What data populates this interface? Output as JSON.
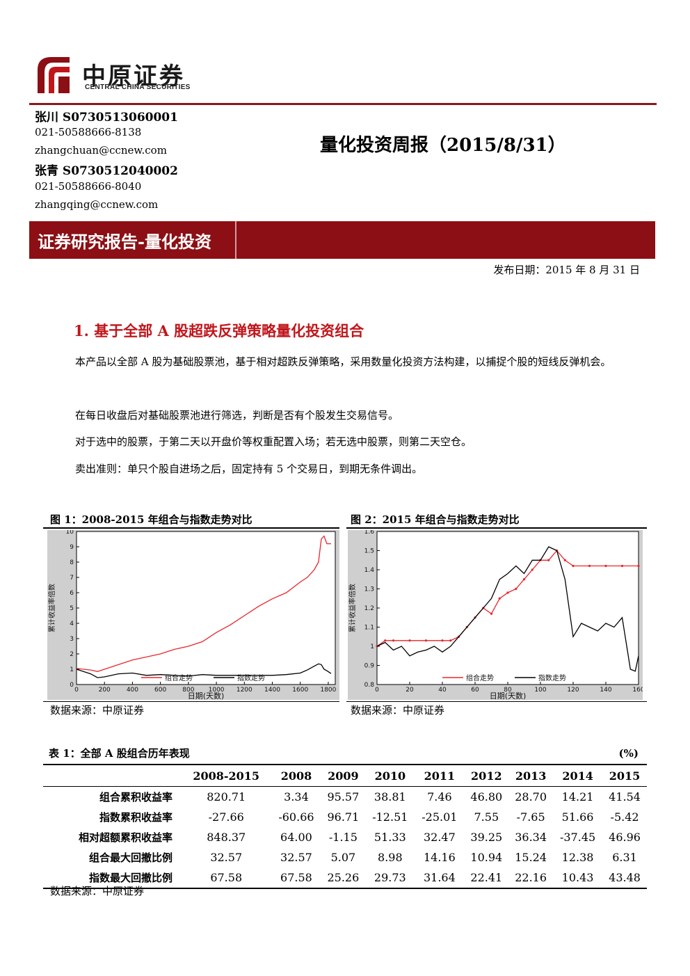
{
  "brand": {
    "name_cn": "中原证券",
    "name_en": "CENTRAL CHINA SECURITIES",
    "color": "#8b0f14"
  },
  "authors": [
    {
      "name": "张川 S0730513060001",
      "phone": "021-50588666-8138",
      "email": "zhangchuan@ccnew.com"
    },
    {
      "name": "张青 S0730512040002",
      "phone": "021-50588666-8040",
      "email": "zhangqing@ccnew.com"
    }
  ],
  "report_title": "量化投资周报（2015/8/31）",
  "banner": "证券研究报告-量化投资",
  "publish_date": "发布日期：2015 年 8 月 31 日",
  "section": {
    "heading": "1. 基于全部 A 股超跌反弹策略量化投资组合",
    "paragraphs": [
      "本产品以全部 A 股为基础股票池，基于相对超跌反弹策略，采用数量化投资方法构建，以捕捉个股的短线反弹机会。",
      "在每日收盘后对基础股票池进行筛选，判断是否有个股发生交易信号。",
      "对于选中的股票，于第二天以开盘价等权重配置入场；若无选中股票，则第二天空仓。",
      "卖出准则：单只个股自进场之后，固定持有 5 个交易日，到期无条件调出。"
    ]
  },
  "figures": [
    {
      "title": "图 1：2008-2015 年组合与指数走势对比",
      "source": "数据来源：中原证券"
    },
    {
      "title": "图 2：2015 年组合与指数走势对比",
      "source": "数据来源：中原证券"
    }
  ],
  "chart_data": [
    {
      "type": "line",
      "xlabel": "日期(天数)",
      "ylabel": "累计收益率倍数",
      "xlim": [
        0,
        1850
      ],
      "ylim": [
        0,
        10
      ],
      "xticks": [
        0,
        200,
        400,
        600,
        800,
        1000,
        1200,
        1400,
        1600,
        1800
      ],
      "yticks": [
        0,
        1,
        2,
        3,
        4,
        5,
        6,
        7,
        8,
        9,
        10
      ],
      "legend": "bottom-center",
      "grid": false,
      "series": [
        {
          "name": "组合走势",
          "color": "#e8262b",
          "x": [
            0,
            100,
            150,
            200,
            300,
            400,
            500,
            600,
            700,
            800,
            900,
            1000,
            1100,
            1200,
            1300,
            1400,
            1500,
            1600,
            1650,
            1700,
            1730,
            1750,
            1770,
            1790,
            1820
          ],
          "y": [
            1.05,
            0.95,
            0.85,
            1.0,
            1.3,
            1.6,
            1.8,
            2.0,
            2.3,
            2.5,
            2.8,
            3.4,
            3.9,
            4.5,
            5.1,
            5.6,
            6.0,
            6.7,
            7.0,
            7.5,
            8.0,
            9.5,
            9.7,
            9.2,
            9.2
          ]
        },
        {
          "name": "指数走势",
          "color": "#000000",
          "x": [
            0,
            100,
            150,
            200,
            300,
            400,
            500,
            600,
            700,
            800,
            900,
            1000,
            1100,
            1200,
            1300,
            1400,
            1500,
            1600,
            1650,
            1700,
            1730,
            1750,
            1770,
            1790,
            1820
          ],
          "y": [
            1.0,
            0.7,
            0.45,
            0.5,
            0.7,
            0.75,
            0.6,
            0.65,
            0.6,
            0.55,
            0.65,
            0.6,
            0.6,
            0.6,
            0.6,
            0.6,
            0.65,
            0.75,
            0.95,
            1.2,
            1.35,
            1.3,
            1.0,
            0.9,
            0.72
          ]
        }
      ]
    },
    {
      "type": "line",
      "xlabel": "日期(天数)",
      "ylabel": "累计收益率倍数",
      "xlim": [
        0,
        160
      ],
      "ylim": [
        0.8,
        1.6
      ],
      "xticks": [
        0,
        20,
        40,
        60,
        80,
        100,
        120,
        140,
        160
      ],
      "yticks": [
        0.8,
        0.9,
        1.0,
        1.1,
        1.2,
        1.3,
        1.4,
        1.5,
        1.6
      ],
      "legend": "bottom-center",
      "grid": false,
      "series": [
        {
          "name": "组合走势",
          "color": "#e8262b",
          "x": [
            0,
            5,
            10,
            20,
            30,
            40,
            45,
            50,
            55,
            60,
            65,
            70,
            75,
            80,
            85,
            90,
            95,
            100,
            105,
            110,
            115,
            120,
            130,
            140,
            150,
            160
          ],
          "y": [
            1.0,
            1.03,
            1.03,
            1.03,
            1.03,
            1.03,
            1.03,
            1.05,
            1.1,
            1.15,
            1.2,
            1.17,
            1.25,
            1.28,
            1.3,
            1.35,
            1.4,
            1.45,
            1.45,
            1.5,
            1.45,
            1.42,
            1.42,
            1.42,
            1.42,
            1.42
          ]
        },
        {
          "name": "指数走势",
          "color": "#000000",
          "x": [
            0,
            5,
            10,
            15,
            20,
            25,
            30,
            35,
            40,
            45,
            50,
            55,
            60,
            65,
            70,
            75,
            80,
            85,
            90,
            95,
            100,
            105,
            110,
            115,
            120,
            125,
            130,
            135,
            140,
            145,
            150,
            155,
            158,
            160
          ],
          "y": [
            1.0,
            1.02,
            0.98,
            1.0,
            0.95,
            0.97,
            0.98,
            1.0,
            0.97,
            1.0,
            1.05,
            1.1,
            1.15,
            1.2,
            1.25,
            1.35,
            1.38,
            1.42,
            1.38,
            1.45,
            1.45,
            1.52,
            1.5,
            1.35,
            1.05,
            1.12,
            1.1,
            1.08,
            1.12,
            1.1,
            1.15,
            0.88,
            0.87,
            0.95
          ]
        }
      ]
    }
  ],
  "table": {
    "title": "表 1：全部 A 股组合历年表现",
    "unit": "(%)",
    "columns": [
      "",
      "2008-2015",
      "2008",
      "2009",
      "2010",
      "2011",
      "2012",
      "2013",
      "2014",
      "2015"
    ],
    "rows": [
      {
        "label": "组合累积收益率",
        "values": [
          "820.71",
          "3.34",
          "95.57",
          "38.81",
          "7.46",
          "46.80",
          "28.70",
          "14.21",
          "41.54"
        ]
      },
      {
        "label": "指数累积收益率",
        "values": [
          "-27.66",
          "-60.66",
          "96.71",
          "-12.51",
          "-25.01",
          "7.55",
          "-7.65",
          "51.66",
          "-5.42"
        ]
      },
      {
        "label": "相对超额累积收益率",
        "values": [
          "848.37",
          "64.00",
          "-1.15",
          "51.33",
          "32.47",
          "39.25",
          "36.34",
          "-37.45",
          "46.96"
        ]
      },
      {
        "label": "组合最大回撤比例",
        "values": [
          "32.57",
          "32.57",
          "5.07",
          "8.98",
          "14.16",
          "10.94",
          "15.24",
          "12.38",
          "6.31"
        ]
      },
      {
        "label": "指数最大回撤比例",
        "values": [
          "67.58",
          "67.58",
          "25.26",
          "29.73",
          "31.64",
          "22.41",
          "22.16",
          "10.43",
          "43.48"
        ]
      }
    ],
    "source": "数据来源：中原证券"
  }
}
